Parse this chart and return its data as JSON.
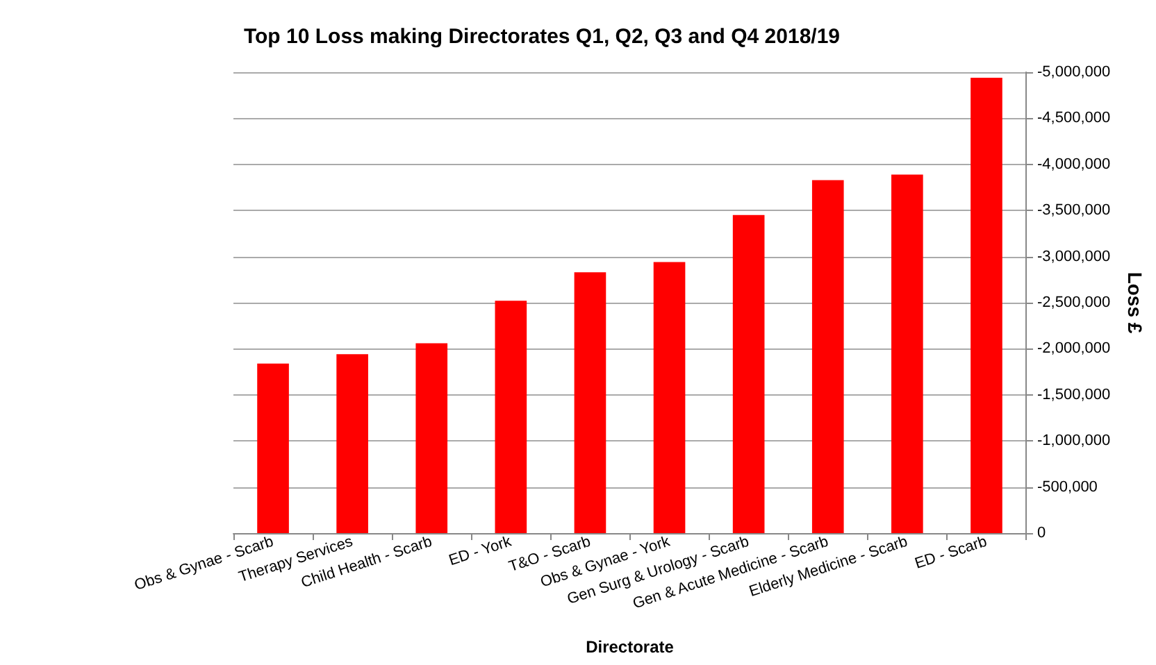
{
  "chart_data": {
    "type": "bar",
    "title": "Top 10 Loss making Directorates Q1, Q2, Q3 and Q4 2018/19",
    "xlabel": "Directorate",
    "ylabel": "Loss £",
    "categories": [
      "Obs & Gynae - Scarb",
      "Therapy Services",
      "Child Health - Scarb",
      "ED - York",
      "T&O - Scarb",
      "Obs & Gynae - York",
      "Gen Surg & Urology - Scarb",
      "Gen & Acute Medicine - Scarb",
      "Elderly Medicine - Scarb",
      "ED - Scarb"
    ],
    "values": [
      -1840000,
      -1940000,
      -2060000,
      -2520000,
      -2830000,
      -2940000,
      -3450000,
      -3830000,
      -3890000,
      -4940000
    ],
    "color": "#ff0000",
    "ylim": [
      0,
      -5000000
    ],
    "yticks": [
      0,
      {
        "value": -500000,
        "label": "-500,000"
      },
      {
        "value": -1000000,
        "label": "-1,000,000"
      },
      {
        "value": -1500000,
        "label": "-1,500,000"
      },
      {
        "value": -2000000,
        "label": "-2,000,000"
      },
      {
        "value": -2500000,
        "label": "-2,500,000"
      },
      {
        "value": -3000000,
        "label": "-3,000,000"
      },
      {
        "value": -3500000,
        "label": "-3,500,000"
      },
      {
        "value": -4000000,
        "label": "-4,000,000"
      },
      {
        "value": -4500000,
        "label": "-4,500,000"
      },
      {
        "value": -5000000,
        "label": "-5,000,000"
      }
    ],
    "grid": "y"
  }
}
